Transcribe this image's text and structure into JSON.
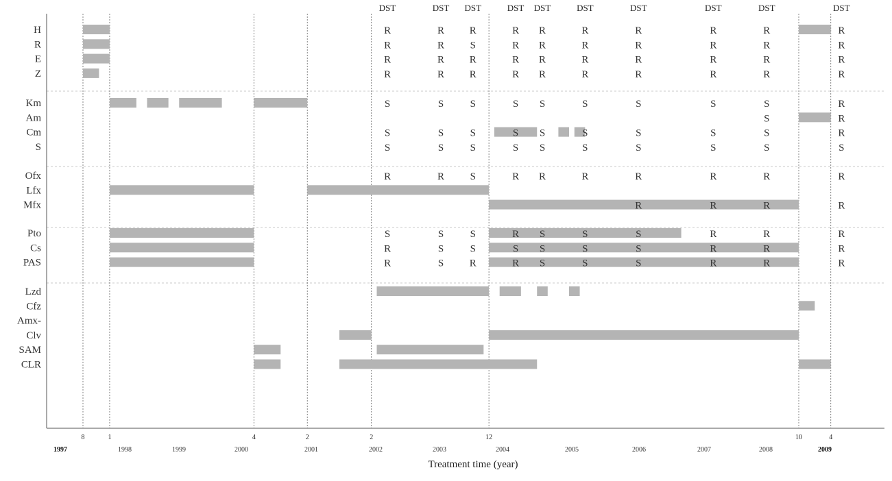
{
  "chart_data": {
    "type": "gantt",
    "xlabel": "Treatment time (year)",
    "drug_groups": [
      [
        "H",
        "R",
        "E",
        "Z"
      ],
      [
        "Km",
        "Am",
        "Cm",
        "S"
      ],
      [
        "Ofx",
        "Lfx",
        "Mfx"
      ],
      [
        "Pto",
        "Cs",
        "PAS"
      ],
      [
        "Lzd",
        "Cfz",
        "Amx-",
        "Clv",
        "SAM",
        "CLR"
      ]
    ],
    "month_ticks": [
      {
        "date": "1997-08",
        "label": "8"
      },
      {
        "date": "1998-01",
        "label": "1"
      },
      {
        "date": "2000-04",
        "label": "4"
      },
      {
        "date": "2001-02",
        "label": "2"
      },
      {
        "date": "2002-02",
        "label": "2"
      },
      {
        "date": "2003-12",
        "label": "12"
      },
      {
        "date": "2008-10",
        "label": "10"
      },
      {
        "date": "2009-04",
        "label": "4"
      }
    ],
    "year_labels": [
      {
        "date": "1997-01",
        "label": "1997",
        "bold": true
      },
      {
        "date": "1998-01",
        "label": "1998",
        "bold": false
      },
      {
        "date": "1999-01",
        "label": "1999",
        "bold": false
      },
      {
        "date": "2000-01",
        "label": "2000",
        "bold": false
      },
      {
        "date": "2001-01",
        "label": "2001",
        "bold": false
      },
      {
        "date": "2002-01",
        "label": "2002",
        "bold": false
      },
      {
        "date": "2003-01",
        "label": "2003",
        "bold": false
      },
      {
        "date": "2004-01",
        "label": "2004",
        "bold": false
      },
      {
        "date": "2005-01",
        "label": "2005",
        "bold": false
      },
      {
        "date": "2006-01",
        "label": "2006",
        "bold": false
      },
      {
        "date": "2007-01",
        "label": "2007",
        "bold": false
      },
      {
        "date": "2008-01",
        "label": "2008",
        "bold": false
      },
      {
        "date": "2009-01",
        "label": "2009",
        "bold": true
      }
    ],
    "treatments": [
      {
        "drug": "H",
        "start": "1997-08",
        "end": "1998-01"
      },
      {
        "drug": "R",
        "start": "1997-08",
        "end": "1998-01"
      },
      {
        "drug": "E",
        "start": "1997-08",
        "end": "1998-01"
      },
      {
        "drug": "Z",
        "start": "1997-08",
        "end": "1997-11"
      },
      {
        "drug": "Km",
        "start": "1998-01",
        "end": "1998-06"
      },
      {
        "drug": "Km",
        "start": "1998-08",
        "end": "1998-12"
      },
      {
        "drug": "Km",
        "start": "1999-02",
        "end": "1999-10"
      },
      {
        "drug": "Km",
        "start": "2000-04",
        "end": "2001-02"
      },
      {
        "drug": "Lfx",
        "start": "1998-01",
        "end": "2000-04"
      },
      {
        "drug": "Lfx",
        "start": "2001-02",
        "end": "2003-12"
      },
      {
        "drug": "Pto",
        "start": "1998-01",
        "end": "2000-04"
      },
      {
        "drug": "Cs",
        "start": "1998-01",
        "end": "2000-04"
      },
      {
        "drug": "PAS",
        "start": "1998-01",
        "end": "2000-04"
      },
      {
        "drug": "SAM",
        "start": "2000-04",
        "end": "2000-09"
      },
      {
        "drug": "CLR",
        "start": "2000-04",
        "end": "2000-09"
      },
      {
        "drug": "Clv",
        "start": "2001-08",
        "end": "2002-02"
      },
      {
        "drug": "CLR",
        "start": "2001-08",
        "end": "2004-09"
      },
      {
        "drug": "Lzd",
        "start": "2002-03",
        "end": "2003-12"
      },
      {
        "drug": "SAM",
        "start": "2002-03",
        "end": "2003-11"
      },
      {
        "drug": "Mfx",
        "start": "2003-12",
        "end": "2008-10"
      },
      {
        "drug": "Pto",
        "start": "2003-12",
        "end": "2006-12"
      },
      {
        "drug": "Cs",
        "start": "2003-12",
        "end": "2008-10"
      },
      {
        "drug": "PAS",
        "start": "2003-12",
        "end": "2008-10"
      },
      {
        "drug": "Clv",
        "start": "2003-12",
        "end": "2008-10"
      },
      {
        "drug": "Cm",
        "start": "2004-01",
        "end": "2004-09"
      },
      {
        "drug": "Cm",
        "start": "2005-01",
        "end": "2005-03"
      },
      {
        "drug": "Cm",
        "start": "2005-04",
        "end": "2005-06"
      },
      {
        "drug": "Lzd",
        "start": "2004-02",
        "end": "2004-06"
      },
      {
        "drug": "Lzd",
        "start": "2004-09",
        "end": "2004-11"
      },
      {
        "drug": "Lzd",
        "start": "2005-03",
        "end": "2005-05"
      },
      {
        "drug": "Cfz",
        "start": "2008-10",
        "end": "2009-01"
      },
      {
        "drug": "H",
        "start": "2008-10",
        "end": "2009-04"
      },
      {
        "drug": "Am",
        "start": "2008-10",
        "end": "2009-04"
      },
      {
        "drug": "CLR",
        "start": "2008-10",
        "end": "2009-04"
      }
    ],
    "dst": [
      {
        "date": "2002-05",
        "results": {
          "H": "R",
          "R": "R",
          "E": "R",
          "Z": "R",
          "Km": "S",
          "Cm": "S",
          "S": "S",
          "Ofx": "R",
          "Pto": "S",
          "Cs": "R",
          "PAS": "R"
        }
      },
      {
        "date": "2003-03",
        "results": {
          "H": "R",
          "R": "R",
          "E": "R",
          "Z": "R",
          "Km": "S",
          "Cm": "S",
          "S": "S",
          "Ofx": "R",
          "Pto": "S",
          "Cs": "S",
          "PAS": "S"
        }
      },
      {
        "date": "2003-09",
        "results": {
          "H": "R",
          "R": "S",
          "E": "R",
          "Z": "R",
          "Km": "S",
          "Cm": "S",
          "S": "S",
          "Ofx": "S",
          "Pto": "S",
          "Cs": "S",
          "PAS": "R"
        }
      },
      {
        "date": "2004-05",
        "results": {
          "H": "R",
          "R": "R",
          "E": "R",
          "Z": "R",
          "Km": "S",
          "Cm": "S",
          "S": "S",
          "Ofx": "R",
          "Pto": "R",
          "Cs": "S",
          "PAS": "R"
        }
      },
      {
        "date": "2004-10",
        "results": {
          "H": "R",
          "R": "R",
          "E": "R",
          "Z": "R",
          "Km": "S",
          "Cm": "S",
          "S": "S",
          "Ofx": "R",
          "Pto": "S",
          "Cs": "S",
          "PAS": "S"
        }
      },
      {
        "date": "2005-06",
        "results": {
          "H": "R",
          "R": "R",
          "E": "R",
          "Z": "R",
          "Km": "S",
          "Cm": "S",
          "S": "S",
          "Ofx": "R",
          "Pto": "S",
          "Cs": "S",
          "PAS": "S"
        }
      },
      {
        "date": "2006-04",
        "results": {
          "H": "R",
          "R": "R",
          "E": "R",
          "Z": "R",
          "Km": "S",
          "Cm": "S",
          "S": "S",
          "Ofx": "R",
          "Mfx": "R",
          "Pto": "S",
          "Cs": "S",
          "PAS": "S"
        }
      },
      {
        "date": "2007-06",
        "results": {
          "H": "R",
          "R": "R",
          "E": "R",
          "Z": "R",
          "Km": "S",
          "Cm": "S",
          "S": "S",
          "Ofx": "R",
          "Mfx": "R",
          "Pto": "R",
          "Cs": "R",
          "PAS": "R"
        }
      },
      {
        "date": "2008-04",
        "results": {
          "H": "R",
          "R": "R",
          "E": "R",
          "Z": "R",
          "Km": "S",
          "Am": "S",
          "Cm": "S",
          "S": "S",
          "Ofx": "R",
          "Mfx": "R",
          "Pto": "R",
          "Cs": "R",
          "PAS": "R"
        }
      },
      {
        "date": "2009-06",
        "results": {
          "H": "R",
          "R": "R",
          "E": "R",
          "Z": "R",
          "Km": "R",
          "Am": "R",
          "Cm": "R",
          "S": "S",
          "Ofx": "R",
          "Mfx": "R",
          "Pto": "R",
          "Cs": "R",
          "PAS": "R"
        }
      }
    ],
    "dst_header": "DST",
    "colors": {
      "bar": "#b4b4b4",
      "axis": "#555555",
      "guide": "#666666",
      "separator": "#c8c8c8"
    },
    "grid": false
  }
}
